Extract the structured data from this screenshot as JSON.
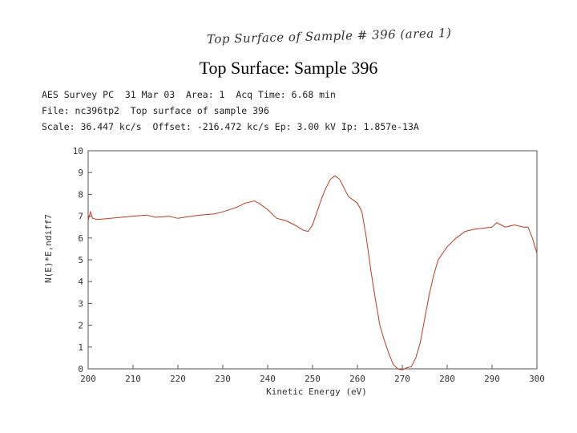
{
  "handwritten_note": "Top Surface of Sample # 396 (area 1)",
  "slide_title": "Top Surface: Sample 396",
  "header": {
    "line1": "AES Survey PC  31 Mar 03  Area: 1  Acq Time: 6.68 min",
    "line2": "File: nc396tp2  Top surface of sample 396",
    "line3": "Scale: 36.447 kc/s  Offset: -216.472 kc/s Ep: 3.00 kV Ip: 1.857e-13A"
  },
  "colors": {
    "trace": "#c0391e",
    "axis": "#555555"
  },
  "chart_data": {
    "type": "line",
    "xlabel": "Kinetic Energy (eV)",
    "ylabel": "N(E)*E,ndiff7",
    "xlim": [
      200,
      300
    ],
    "ylim": [
      0,
      10
    ],
    "x_ticks": [
      "200",
      "210",
      "220",
      "230",
      "240",
      "250",
      "260",
      "270",
      "280",
      "290",
      "300"
    ],
    "y_ticks": [
      "0",
      "1",
      "2",
      "3",
      "4",
      "5",
      "6",
      "7",
      "8",
      "9",
      "10"
    ],
    "grid": false,
    "series": [
      {
        "x": [
          200,
          200.5,
          201,
          202,
          205,
          210,
          213,
          215,
          218,
          220,
          223,
          225,
          228,
          230,
          233,
          235,
          237,
          238,
          240,
          242,
          244,
          246,
          248,
          249,
          250,
          251,
          252,
          253,
          254,
          255,
          256,
          257,
          258,
          260,
          261,
          262,
          263,
          264,
          265,
          266,
          267,
          268,
          269,
          270,
          271,
          272,
          273,
          274,
          275,
          276,
          277,
          278,
          280,
          282,
          284,
          286,
          288,
          290,
          291,
          292,
          293,
          295,
          297,
          298,
          299,
          300
        ],
        "y": [
          6.8,
          7.2,
          6.9,
          6.85,
          6.9,
          7.0,
          7.05,
          6.95,
          7.0,
          6.9,
          7.0,
          7.05,
          7.1,
          7.2,
          7.4,
          7.6,
          7.7,
          7.6,
          7.3,
          6.9,
          6.8,
          6.6,
          6.35,
          6.3,
          6.6,
          7.2,
          7.8,
          8.3,
          8.7,
          8.85,
          8.7,
          8.3,
          7.9,
          7.6,
          7.2,
          6.0,
          4.5,
          3.2,
          2.0,
          1.3,
          0.7,
          0.2,
          0.0,
          -0.05,
          0.05,
          0.1,
          0.5,
          1.2,
          2.3,
          3.4,
          4.3,
          5.0,
          5.6,
          6.0,
          6.3,
          6.4,
          6.45,
          6.5,
          6.7,
          6.6,
          6.5,
          6.6,
          6.5,
          6.5,
          6.0,
          5.3
        ]
      }
    ]
  }
}
